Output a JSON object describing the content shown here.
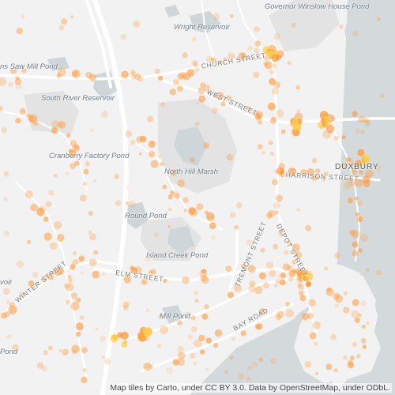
{
  "map": {
    "water_labels": [
      {
        "id": "governor-winslow-house-pond",
        "text": "Governor Winslow House Pond"
      },
      {
        "id": "wright-reservoir",
        "text": "Wright Reservoir"
      },
      {
        "id": "saw-mill-pond",
        "text": "ns Saw Mill Pond"
      },
      {
        "id": "south-river-reservoir",
        "text": "South River Reservoir"
      },
      {
        "id": "cranberry-factory-pond",
        "text": "Cranberry Factory Pond"
      },
      {
        "id": "north-hill-marsh",
        "text": "North Hill Marsh"
      },
      {
        "id": "round-pond",
        "text": "Round Pond"
      },
      {
        "id": "island-creek-pond",
        "text": "Island Creek Pond"
      },
      {
        "id": "mill-pond",
        "text": "Mill Pond"
      },
      {
        "id": "pond-left",
        "text": "Pond"
      },
      {
        "id": "voir-left",
        "text": "voir"
      }
    ],
    "street_labels": [
      {
        "id": "church-street",
        "text": "CHURCH STREET"
      },
      {
        "id": "west-street",
        "text": "WEST STREET"
      },
      {
        "id": "harrison-street",
        "text": "HARRISON STREET"
      },
      {
        "id": "depot-street",
        "text": "DEPOT STREET"
      },
      {
        "id": "tremont-street",
        "text": "TREMONT STREET"
      },
      {
        "id": "winter-street",
        "text": "WINTER STREET"
      },
      {
        "id": "elm-street",
        "text": "ELM STREET"
      },
      {
        "id": "bay-road",
        "text": "BAY ROAD"
      }
    ],
    "town_label": "DUXBURY",
    "attribution": "Map tiles by Carto, under CC BY 3.0. Data by OpenStreetMap, under ODbL.",
    "colors": {
      "land": "#f2f2f2",
      "water": "#d4dadc",
      "park": "#e4e4e4",
      "road": "#ffffff",
      "heat": "#ff9a3c",
      "heat_core": "#ffd04a"
    }
  }
}
